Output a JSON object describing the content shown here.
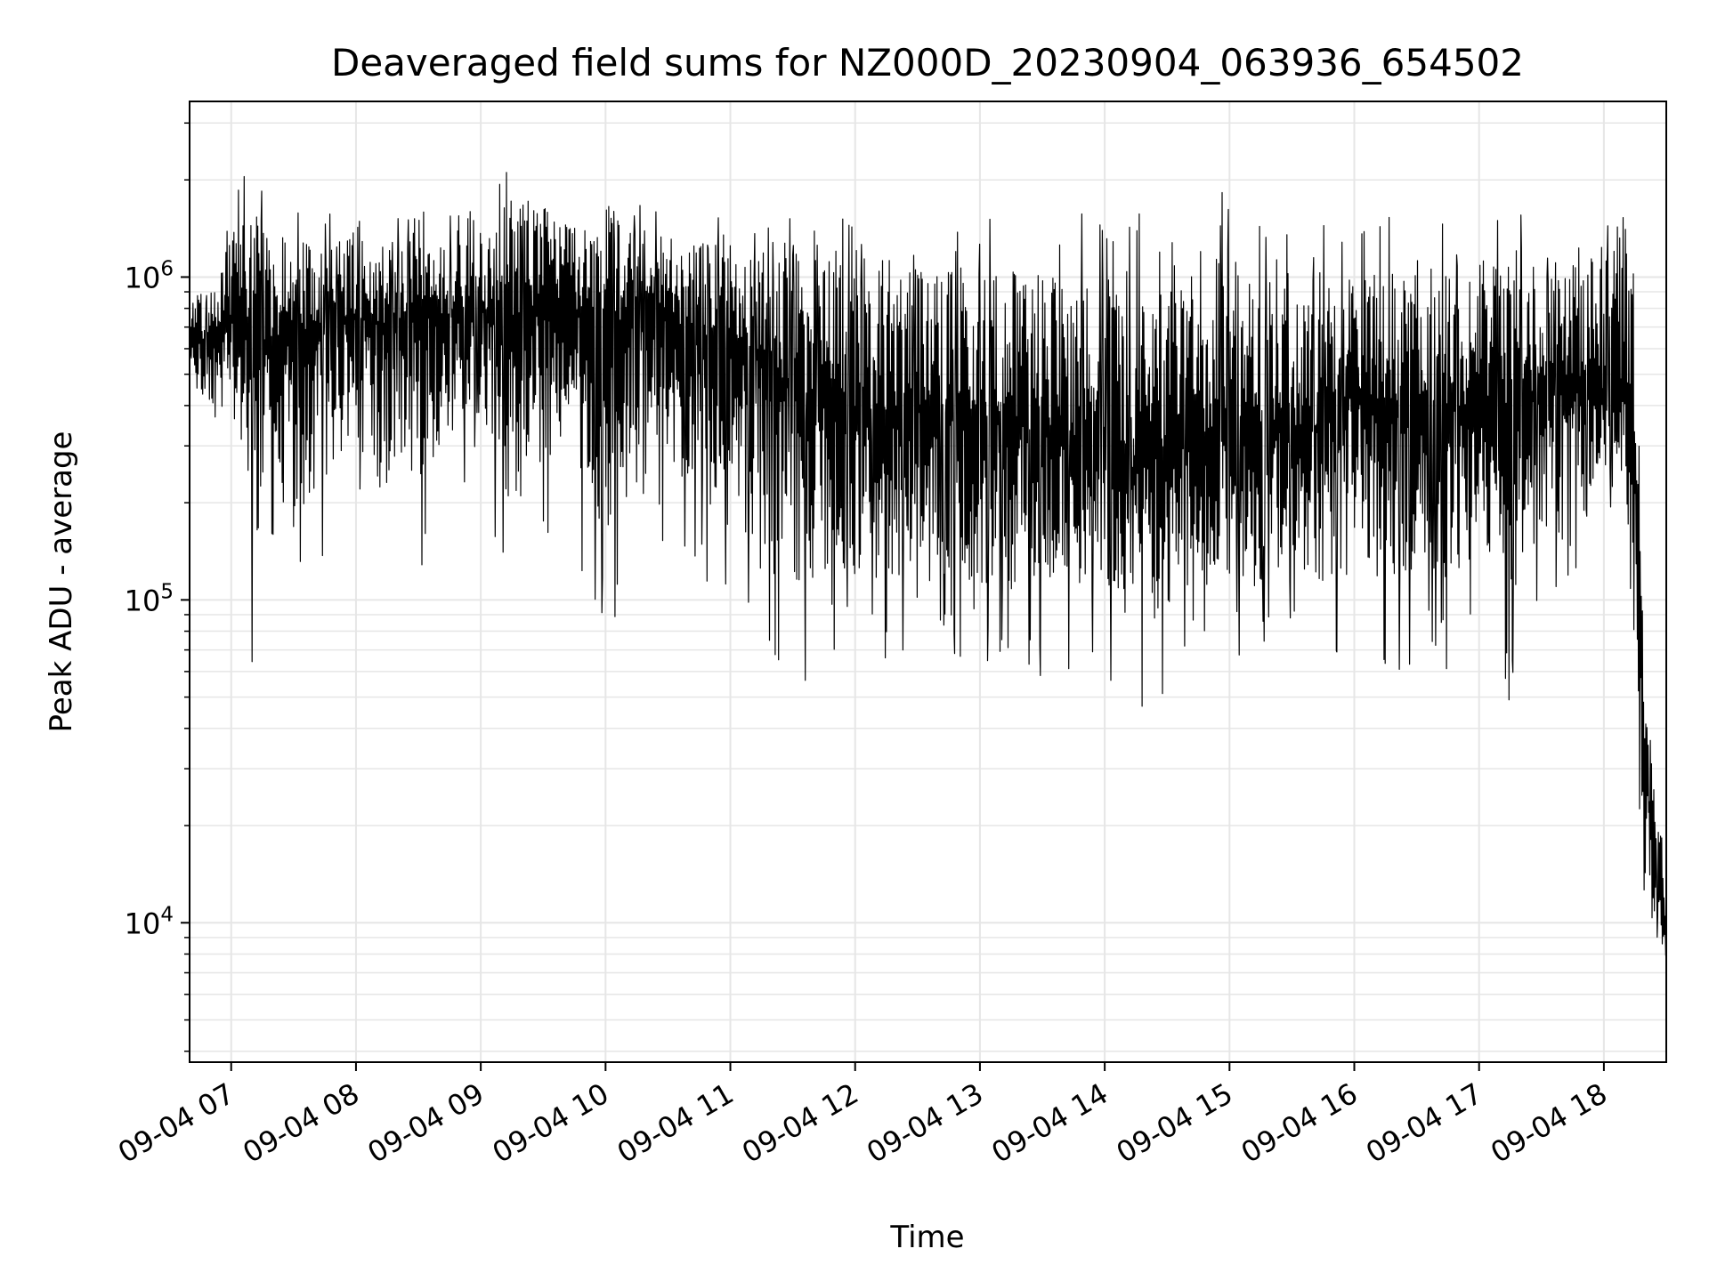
{
  "chart_data": {
    "type": "line",
    "title": "Deaveraged field sums for NZ000D_20230904_063936_654502",
    "xlabel": "Time",
    "ylabel": "Peak ADU - average",
    "yscale": "log",
    "ylim": [
      3700,
      3500000
    ],
    "xlim": [
      "2023-09-04 06:40",
      "2023-09-04 18:30"
    ],
    "grid": true,
    "legend": "none",
    "line_color": "#000000",
    "grid_color": "#e6e6e6",
    "x_ticks": [
      {
        "value": "2023-09-04 07:00",
        "label": "09-04 07"
      },
      {
        "value": "2023-09-04 08:00",
        "label": "09-04 08"
      },
      {
        "value": "2023-09-04 09:00",
        "label": "09-04 09"
      },
      {
        "value": "2023-09-04 10:00",
        "label": "09-04 10"
      },
      {
        "value": "2023-09-04 11:00",
        "label": "09-04 11"
      },
      {
        "value": "2023-09-04 12:00",
        "label": "09-04 12"
      },
      {
        "value": "2023-09-04 13:00",
        "label": "09-04 13"
      },
      {
        "value": "2023-09-04 14:00",
        "label": "09-04 14"
      },
      {
        "value": "2023-09-04 15:00",
        "label": "09-04 15"
      },
      {
        "value": "2023-09-04 16:00",
        "label": "09-04 16"
      },
      {
        "value": "2023-09-04 17:00",
        "label": "09-04 17"
      },
      {
        "value": "2023-09-04 18:00",
        "label": "09-04 18"
      }
    ],
    "y_ticks": [
      {
        "value": 10000,
        "base": "10",
        "exponent": "4"
      },
      {
        "value": 100000,
        "base": "10",
        "exponent": "5"
      },
      {
        "value": 1000000,
        "base": "10",
        "exponent": "6"
      }
    ],
    "series": [
      {
        "x": [
          "2023-09-04 06:40",
          "2023-09-04 06:50",
          "2023-09-04 07:00",
          "2023-09-04 07:10",
          "2023-09-04 07:20",
          "2023-09-04 07:30",
          "2023-09-04 07:40",
          "2023-09-04 07:50",
          "2023-09-04 08:00",
          "2023-09-04 08:15",
          "2023-09-04 08:30",
          "2023-09-04 08:45",
          "2023-09-04 09:00",
          "2023-09-04 09:15",
          "2023-09-04 09:30",
          "2023-09-04 09:45",
          "2023-09-04 10:00",
          "2023-09-04 10:15",
          "2023-09-04 10:30",
          "2023-09-04 10:45",
          "2023-09-04 11:00",
          "2023-09-04 11:15",
          "2023-09-04 11:30",
          "2023-09-04 11:45",
          "2023-09-04 12:00",
          "2023-09-04 12:15",
          "2023-09-04 12:30",
          "2023-09-04 12:45",
          "2023-09-04 13:00",
          "2023-09-04 13:15",
          "2023-09-04 13:30",
          "2023-09-04 13:45",
          "2023-09-04 14:00",
          "2023-09-04 14:15",
          "2023-09-04 14:30",
          "2023-09-04 14:45",
          "2023-09-04 15:00",
          "2023-09-04 15:15",
          "2023-09-04 15:30",
          "2023-09-04 15:45",
          "2023-09-04 16:00",
          "2023-09-04 16:15",
          "2023-09-04 16:30",
          "2023-09-04 16:45",
          "2023-09-04 17:00",
          "2023-09-04 17:15",
          "2023-09-04 17:30",
          "2023-09-04 17:45",
          "2023-09-04 18:00",
          "2023-09-04 18:10",
          "2023-09-04 18:15",
          "2023-09-04 18:20",
          "2023-09-04 18:25",
          "2023-09-04 18:30"
        ],
        "median": [
          600000,
          650000,
          750000,
          700000,
          600000,
          650000,
          700000,
          700000,
          750000,
          700000,
          800000,
          750000,
          800000,
          750000,
          800000,
          800000,
          700000,
          750000,
          750000,
          650000,
          650000,
          550000,
          450000,
          400000,
          350000,
          380000,
          400000,
          380000,
          350000,
          350000,
          350000,
          300000,
          280000,
          250000,
          300000,
          300000,
          350000,
          330000,
          330000,
          350000,
          450000,
          400000,
          350000,
          380000,
          400000,
          380000,
          450000,
          450000,
          450000,
          450000,
          300000,
          30000,
          15000,
          9000
        ],
        "upper": [
          1000000,
          1000000,
          1600000,
          2600000,
          1500000,
          1700000,
          1500000,
          1600000,
          1800000,
          1500000,
          1600000,
          1700000,
          2300000,
          2300000,
          2200000,
          1800000,
          2200000,
          1700000,
          1600000,
          1600000,
          1600000,
          1500000,
          1700000,
          1700000,
          1600000,
          1500000,
          1500000,
          1500000,
          1600000,
          1500000,
          1500000,
          1600000,
          1700000,
          1700000,
          1300000,
          1400000,
          2000000,
          1500000,
          1500000,
          1500000,
          1400000,
          1600000,
          1700000,
          1500000,
          1600000,
          1600000,
          1600000,
          1500000,
          1800000,
          2400000,
          1600000,
          55000,
          35000,
          15000
        ],
        "lower": [
          400000,
          300000,
          300000,
          62000,
          110000,
          80000,
          120000,
          150000,
          200000,
          72000,
          120000,
          200000,
          250000,
          85000,
          150000,
          120000,
          75000,
          87000,
          150000,
          120000,
          80000,
          55000,
          48000,
          65000,
          65000,
          60000,
          43000,
          60000,
          62000,
          55000,
          56000,
          60000,
          58000,
          40000,
          52000,
          60000,
          62000,
          60000,
          60000,
          62000,
          60000,
          60000,
          60000,
          60000,
          60000,
          47000,
          80000,
          80000,
          200000,
          140000,
          15000,
          4700,
          7500,
          7000
        ]
      }
    ]
  }
}
